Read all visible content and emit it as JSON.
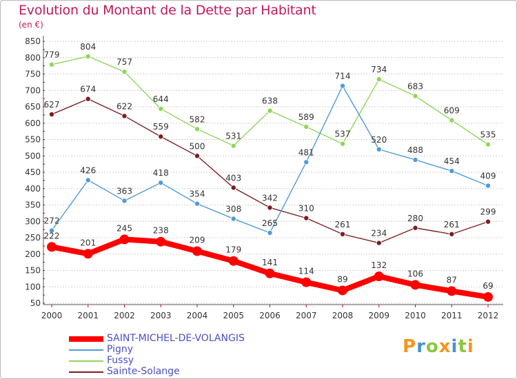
{
  "title": "Evolution du Montant de la Dette par Habitant",
  "subtitle": "(en €)",
  "logo_text": "Proxiti",
  "chart_data": {
    "type": "line",
    "title": "Evolution du Montant de la Dette par Habitant",
    "ylabel": "(en €)",
    "xlabel": "",
    "x": [
      "2000",
      "2001",
      "2002",
      "2003",
      "2004",
      "2005",
      "2006",
      "2007",
      "2008",
      "2009",
      "2010",
      "2011",
      "2012"
    ],
    "ylim": [
      50,
      850
    ],
    "yticks": [
      50,
      100,
      150,
      200,
      250,
      300,
      350,
      400,
      450,
      500,
      550,
      600,
      650,
      700,
      750,
      800,
      850
    ],
    "grid": "horizontal",
    "legend_position": "bottom-left",
    "series": [
      {
        "name": "SAINT-MICHEL-DE-VOLANGIS",
        "color": "#ff0000",
        "values": [
          222,
          201,
          245,
          238,
          209,
          179,
          141,
          114,
          89,
          132,
          106,
          87,
          69
        ]
      },
      {
        "name": "Pigny",
        "color": "#4f9ad6",
        "values": [
          272,
          426,
          363,
          418,
          354,
          308,
          265,
          481,
          714,
          520,
          488,
          454,
          409
        ]
      },
      {
        "name": "Fussy",
        "color": "#8fd65a",
        "values": [
          779,
          804,
          757,
          644,
          582,
          531,
          638,
          589,
          537,
          734,
          683,
          609,
          535
        ]
      },
      {
        "name": "Sainte-Solange",
        "color": "#7a1e24",
        "values": [
          627,
          674,
          622,
          559,
          500,
          403,
          342,
          310,
          261,
          234,
          280,
          261,
          299
        ]
      }
    ]
  }
}
